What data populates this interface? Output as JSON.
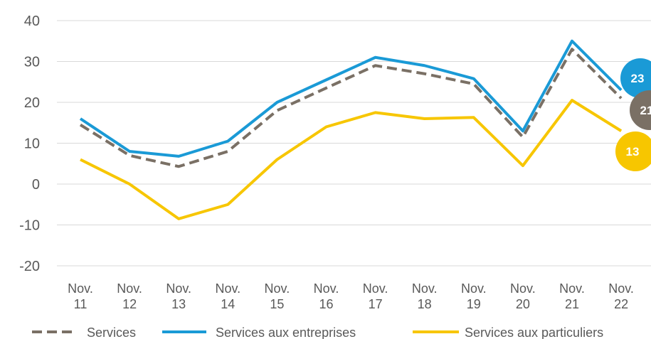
{
  "chart_data": {
    "type": "line",
    "categories": [
      "Nov. 11",
      "Nov. 12",
      "Nov. 13",
      "Nov. 14",
      "Nov. 15",
      "Nov. 16",
      "Nov. 17",
      "Nov. 18",
      "Nov. 19",
      "Nov. 20",
      "Nov. 21",
      "Nov. 22"
    ],
    "series": [
      {
        "name": "Services",
        "color": "#7a7065",
        "dashed": true,
        "values": [
          14.5,
          7,
          4.3,
          8,
          18,
          23.5,
          29,
          27,
          24.5,
          11.5,
          33,
          21
        ]
      },
      {
        "name": "Services aux entreprises",
        "color": "#1a9ad6",
        "values": [
          16,
          8,
          6.8,
          10.5,
          20,
          25.5,
          31,
          29,
          25.8,
          13,
          35,
          23
        ]
      },
      {
        "name": "Services aux particuliers",
        "color": "#f7c600",
        "values": [
          6,
          0,
          -8.5,
          -5,
          6,
          14,
          17.5,
          16,
          16.3,
          4.5,
          20.5,
          13
        ]
      }
    ],
    "ylim": [
      -20,
      40
    ],
    "yticks": [
      -20,
      -10,
      0,
      10,
      20,
      30,
      40
    ],
    "grid": true,
    "legend": "bottom"
  }
}
